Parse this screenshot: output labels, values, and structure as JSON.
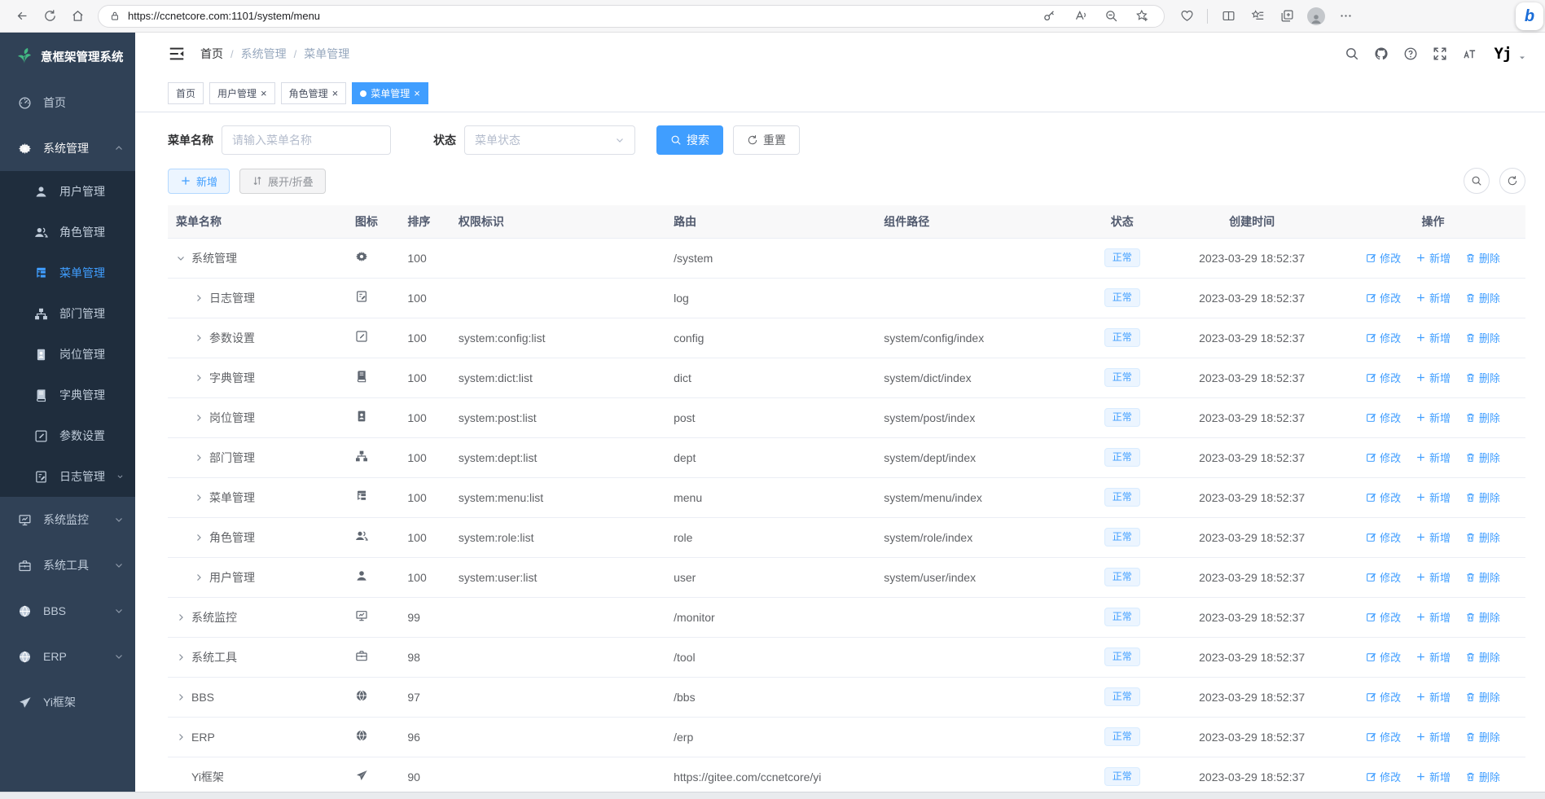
{
  "colors": {
    "accent": "#409eff",
    "sidebar_bg": "#304156",
    "submenu_bg": "#1f2d3d",
    "badge_bg": "#ecf5ff",
    "badge_border": "#d9ecff",
    "active_tab_bg": "#409eff",
    "logo_green": "#42b983"
  },
  "browser": {
    "url": "https://ccnetcore.com:1101/system/menu",
    "left_icons": [
      "back-icon",
      "refresh-icon",
      "home-icon"
    ],
    "pill_icons": [
      "lock-icon",
      "key-icon",
      "read-aloud-icon",
      "zoom-out-icon",
      "favorite-add-icon"
    ],
    "right_icons": [
      "essentials-icon",
      "split-screen-icon",
      "favorites-icon",
      "collections-icon",
      "profile-icon",
      "more-icon"
    ],
    "assistant_glyph": "b"
  },
  "sidebar": {
    "logo_text": "意框架管理系统",
    "logo_icon": "leaf-icon",
    "items": [
      {
        "key": "home",
        "label": "首页",
        "icon": "dashboard"
      },
      {
        "key": "system",
        "label": "系统管理",
        "icon": "gear",
        "expanded": true,
        "children": [
          {
            "key": "user",
            "label": "用户管理",
            "icon": "user"
          },
          {
            "key": "role",
            "label": "角色管理",
            "icon": "users"
          },
          {
            "key": "menu",
            "label": "菜单管理",
            "icon": "menu-tree",
            "active": true
          },
          {
            "key": "dept",
            "label": "部门管理",
            "icon": "sitemap"
          },
          {
            "key": "post",
            "label": "岗位管理",
            "icon": "badge"
          },
          {
            "key": "dict",
            "label": "字典管理",
            "icon": "book"
          },
          {
            "key": "config",
            "label": "参数设置",
            "icon": "edit-square"
          },
          {
            "key": "log",
            "label": "日志管理",
            "icon": "doc-edit",
            "chevron": true
          }
        ]
      },
      {
        "key": "monitor",
        "label": "系统监控",
        "icon": "monitor",
        "chevron": true
      },
      {
        "key": "tool",
        "label": "系统工具",
        "icon": "toolbox",
        "chevron": true
      },
      {
        "key": "bbs",
        "label": "BBS",
        "icon": "globe",
        "chevron": true
      },
      {
        "key": "erp",
        "label": "ERP",
        "icon": "globe",
        "chevron": true
      },
      {
        "key": "yiframe",
        "label": "Yi框架",
        "icon": "paper-plane"
      }
    ]
  },
  "header": {
    "breadcrumb": [
      "首页",
      "系统管理",
      "菜单管理"
    ],
    "breadcrumb_separator": "/",
    "fold_icon": "fold-menu-icon",
    "tools": [
      "search-icon",
      "github-icon",
      "help-icon",
      "fullscreen-icon",
      "font-size-icon"
    ],
    "avatar_text": "Yj",
    "caret_icon": "caret-down-icon"
  },
  "tabs": {
    "close_glyph": "×",
    "items": [
      {
        "label": "首页",
        "closable": false,
        "active": false
      },
      {
        "label": "用户管理",
        "closable": true,
        "active": false
      },
      {
        "label": "角色管理",
        "closable": true,
        "active": false
      },
      {
        "label": "菜单管理",
        "closable": true,
        "active": true
      }
    ]
  },
  "search": {
    "name_label": "菜单名称",
    "name_placeholder": "请输入菜单名称",
    "name_value": "",
    "status_label": "状态",
    "status_placeholder": "菜单状态",
    "search_label": "搜索",
    "reset_label": "重置"
  },
  "toolbar": {
    "add_label": "新增",
    "expand_label": "展开/折叠"
  },
  "table": {
    "columns": [
      "菜单名称",
      "图标",
      "排序",
      "权限标识",
      "路由",
      "组件路径",
      "状态",
      "创建时间",
      "操作"
    ],
    "actions": {
      "edit": "修改",
      "add": "新增",
      "delete": "删除"
    },
    "rows": [
      {
        "name": "系统管理",
        "icon": "gear",
        "arrow": "down",
        "level": 0,
        "sort": "100",
        "perms": "",
        "route": "/system",
        "component": "",
        "status": "正常",
        "created": "2023-03-29 18:52:37"
      },
      {
        "name": "日志管理",
        "icon": "doc-edit",
        "arrow": "right",
        "level": 1,
        "sort": "100",
        "perms": "",
        "route": "log",
        "component": "",
        "status": "正常",
        "created": "2023-03-29 18:52:37"
      },
      {
        "name": "参数设置",
        "icon": "edit-square",
        "arrow": "right",
        "level": 1,
        "sort": "100",
        "perms": "system:config:list",
        "route": "config",
        "component": "system/config/index",
        "status": "正常",
        "created": "2023-03-29 18:52:37"
      },
      {
        "name": "字典管理",
        "icon": "book",
        "arrow": "right",
        "level": 1,
        "sort": "100",
        "perms": "system:dict:list",
        "route": "dict",
        "component": "system/dict/index",
        "status": "正常",
        "created": "2023-03-29 18:52:37"
      },
      {
        "name": "岗位管理",
        "icon": "badge",
        "arrow": "right",
        "level": 1,
        "sort": "100",
        "perms": "system:post:list",
        "route": "post",
        "component": "system/post/index",
        "status": "正常",
        "created": "2023-03-29 18:52:37"
      },
      {
        "name": "部门管理",
        "icon": "sitemap",
        "arrow": "right",
        "level": 1,
        "sort": "100",
        "perms": "system:dept:list",
        "route": "dept",
        "component": "system/dept/index",
        "status": "正常",
        "created": "2023-03-29 18:52:37"
      },
      {
        "name": "菜单管理",
        "icon": "menu-tree",
        "arrow": "right",
        "level": 1,
        "sort": "100",
        "perms": "system:menu:list",
        "route": "menu",
        "component": "system/menu/index",
        "status": "正常",
        "created": "2023-03-29 18:52:37"
      },
      {
        "name": "角色管理",
        "icon": "users",
        "arrow": "right",
        "level": 1,
        "sort": "100",
        "perms": "system:role:list",
        "route": "role",
        "component": "system/role/index",
        "status": "正常",
        "created": "2023-03-29 18:52:37"
      },
      {
        "name": "用户管理",
        "icon": "user",
        "arrow": "right",
        "level": 1,
        "sort": "100",
        "perms": "system:user:list",
        "route": "user",
        "component": "system/user/index",
        "status": "正常",
        "created": "2023-03-29 18:52:37"
      },
      {
        "name": "系统监控",
        "icon": "monitor",
        "arrow": "right",
        "level": 0,
        "sort": "99",
        "perms": "",
        "route": "/monitor",
        "component": "",
        "status": "正常",
        "created": "2023-03-29 18:52:37"
      },
      {
        "name": "系统工具",
        "icon": "toolbox",
        "arrow": "right",
        "level": 0,
        "sort": "98",
        "perms": "",
        "route": "/tool",
        "component": "",
        "status": "正常",
        "created": "2023-03-29 18:52:37"
      },
      {
        "name": "BBS",
        "icon": "globe",
        "arrow": "right",
        "level": 0,
        "sort": "97",
        "perms": "",
        "route": "/bbs",
        "component": "",
        "status": "正常",
        "created": "2023-03-29 18:52:37"
      },
      {
        "name": "ERP",
        "icon": "globe",
        "arrow": "right",
        "level": 0,
        "sort": "96",
        "perms": "",
        "route": "/erp",
        "component": "",
        "status": "正常",
        "created": "2023-03-29 18:52:37"
      },
      {
        "name": "Yi框架",
        "icon": "paper-plane",
        "arrow": "none",
        "level": 0,
        "sort": "90",
        "perms": "",
        "route": "https://gitee.com/ccnetcore/yi",
        "component": "",
        "status": "正常",
        "created": "2023-03-29 18:52:37"
      }
    ]
  }
}
